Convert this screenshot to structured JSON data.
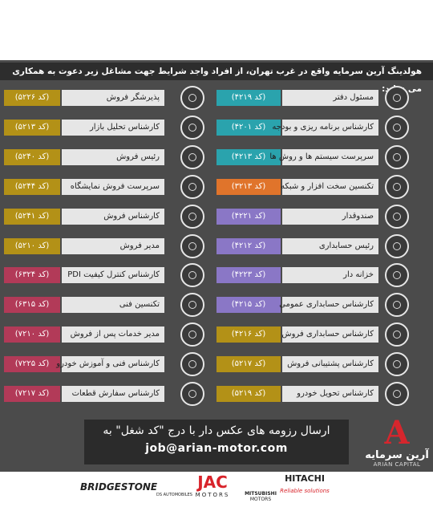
{
  "header": {
    "intro": "هولدینگ آرین سرمایه واقع در غرب تهران، از افراد واجد شرایط جهت مشاغل زیر دعوت به همکاری می نماید:"
  },
  "jobs": {
    "right": [
      {
        "title": "مسئول دفتر",
        "code": "(کد ۴۲۱۹)",
        "color": "#2aa3ad"
      },
      {
        "title": "کارشناس برنامه ریزی و بودجه",
        "code": "(کد ۴۲۰۱)",
        "color": "#2aa3ad"
      },
      {
        "title": "سرپرست سیستم ها و روش ها",
        "code": "(کد ۴۲۱۳)",
        "color": "#2aa3ad"
      },
      {
        "title": "تکنسین سخت افزار و شبکه",
        "code": "(کد ۳۲۱۳)",
        "color": "#e0742b"
      },
      {
        "title": "صندوقدار",
        "code": "(کد ۴۲۲۱)",
        "color": "#8a77c6"
      },
      {
        "title": "رئیس حسابداری",
        "code": "(کد ۴۲۱۲)",
        "color": "#8a77c6"
      },
      {
        "title": "خزانه دار",
        "code": "(کد ۴۲۲۳)",
        "color": "#8a77c6"
      },
      {
        "title": "کارشناس حسابداری عمومی",
        "code": "(کد ۴۲۱۵)",
        "color": "#8a77c6"
      },
      {
        "title": "کارشناس حسابداری فروش",
        "code": "(کد ۴۲۱۶)",
        "color": "#b39117"
      },
      {
        "title": "کارشناس پشتیبانی فروش",
        "code": "(کد ۵۲۱۷)",
        "color": "#b39117"
      },
      {
        "title": "کارشناس تحویل خودرو",
        "code": "(کد ۵۲۱۹)",
        "color": "#b39117"
      }
    ],
    "left": [
      {
        "title": "پذیرشگر فروش",
        "code": "(کد ۵۲۲۶)",
        "color": "#b39117"
      },
      {
        "title": "کارشناس تحلیل بازار",
        "code": "(کد ۵۲۱۳)",
        "color": "#b39117"
      },
      {
        "title": "رئیس فروش",
        "code": "(کد ۵۲۴۰)",
        "color": "#b39117"
      },
      {
        "title": "سرپرست فروش نمایشگاه",
        "code": "(کد ۵۲۴۴)",
        "color": "#b39117"
      },
      {
        "title": "کارشناس فروش",
        "code": "(کد ۵۲۴۱)",
        "color": "#b39117"
      },
      {
        "title": "مدیر فروش",
        "code": "(کد ۵۲۱۰)",
        "color": "#b39117"
      },
      {
        "title": "کارشناس کنترل کیفیت PDI",
        "code": "(کد ۶۳۲۴)",
        "color": "#b23a58"
      },
      {
        "title": "تکنسین فنی",
        "code": "(کد ۶۳۱۵)",
        "color": "#b23a58"
      },
      {
        "title": "مدیر خدمات پس از فروش",
        "code": "(کد ۷۲۱۰)",
        "color": "#b23a58"
      },
      {
        "title": "کارشناس فنی و آموزش خودرو",
        "code": "(کد ۷۲۲۵)",
        "color": "#b23a58"
      },
      {
        "title": "کارشناس سفارش قطعات",
        "code": "(کد ۷۲۱۷)",
        "color": "#b23a58"
      }
    ]
  },
  "contact": {
    "line": "ارسال رزومه های عکس دار با درج \"کد شغل\" به",
    "email": "job@arian-motor.com"
  },
  "logo": {
    "letter": "A",
    "name": "آرین سرمایه",
    "latin": "ARIAN CAPITAL"
  },
  "brands": {
    "bridgestone": "BRIDGESTONE",
    "ds": "DS AUTOMOBILES",
    "jac": "JAC",
    "jac_sub": "MOTORS",
    "mitsubishi": "MITSUBISHI",
    "mitsubishi_sub": "MOTORS",
    "hitachi": "HITACHI",
    "hitachi_sub": "Reliable solutions"
  }
}
